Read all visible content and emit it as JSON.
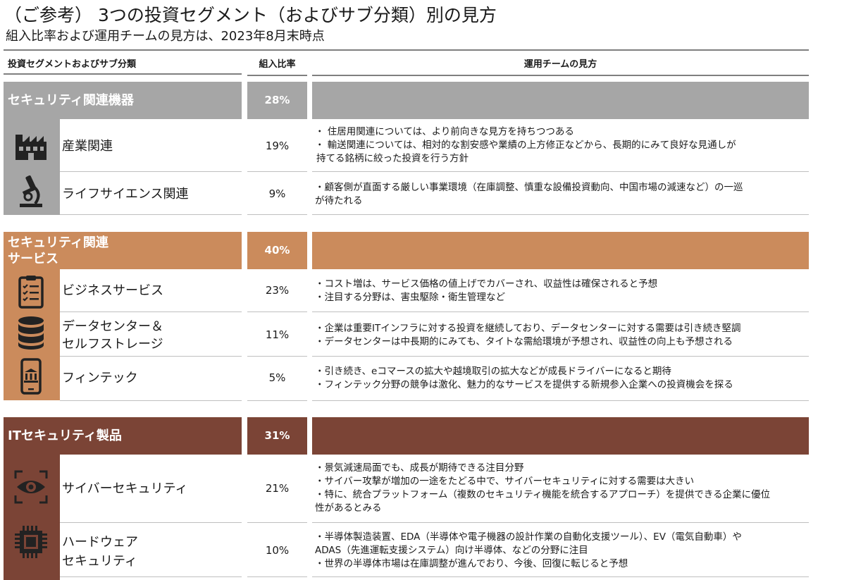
{
  "header": {
    "title": "（ご参考） 3つの投資セグメント（およびサブ分類）別の見方",
    "subtitle": "組入比率および運用チームの見方は、2023年8月末時点"
  },
  "columns": {
    "segment": "投資セグメントおよびサブ分類",
    "ratio": "組入比率",
    "outlook": "運用チームの見方"
  },
  "colors": {
    "segment1": "#a6a6a6",
    "segment2": "#cb8b5c",
    "segment3": "#7b4436",
    "separator": "#bfbfbf"
  },
  "segments": [
    {
      "name": "セキュリティ関連機器",
      "ratio": "28%",
      "rows": [
        {
          "icon": "factory-icon",
          "name": "産業関連",
          "ratio": "19%",
          "comments": [
            "・ 住居用関連については、より前向きな見方を持ちつつある",
            "・ 輸送関連については、相対的な割安感や業績の上方修正などから、長期的にみて良好な見通しが",
            "持てる銘柄に絞った投資を行う方針"
          ]
        },
        {
          "icon": "microscope-icon",
          "name": "ライフサイエンス関連",
          "ratio": "9%",
          "comments": [
            "・顧客側が直面する厳しい事業環境（在庫調整、慎重な設備投資動向、中国市場の減速など）の一巡",
            "が待たれる"
          ]
        }
      ]
    },
    {
      "name_lines": [
        "セキュリティ関連",
        "サービス"
      ],
      "ratio": "40%",
      "rows": [
        {
          "icon": "clipboard-checklist-icon",
          "name": "ビジネスサービス",
          "ratio": "23%",
          "comments": [
            "・コスト増は、サービス価格の値上げでカバーされ、収益性は確保されると予想",
            "・注目する分野は、害虫駆除・衛生管理など"
          ]
        },
        {
          "icon": "database-icon",
          "name_lines": [
            "データセンター＆",
            "セルフストレージ"
          ],
          "ratio": "11%",
          "comments": [
            "・企業は重要ITインフラに対する投資を継続しており、データセンターに対する需要は引き続き堅調",
            "・データセンターは中長期的にみても、タイトな需給環境が予想され、収益性の向上も予想される"
          ]
        },
        {
          "icon": "smartphone-bank-icon",
          "name": "フィンテック",
          "ratio": "5%",
          "comments": [
            "・引き続き、eコマースの拡大や越境取引の拡大などが成長ドライバーになると期待",
            "・フィンテック分野の競争は激化、魅力的なサービスを提供する新規参入企業への投資機会を探る"
          ]
        }
      ]
    },
    {
      "name": "ITセキュリティ製品",
      "ratio": "31%",
      "rows": [
        {
          "icon": "eye-scan-icon",
          "name": "サイバーセキュリティ",
          "ratio": "21%",
          "comments": [
            "・景気減速局面でも、成長が期待できる注目分野",
            "・サイバー攻撃が増加の一途をたどる中で、サイバーセキュリティに対する需要は大きい",
            "・特に、統合プラットフォーム（複数のセキュリティ機能を統合するアプローチ）を提供できる企業に優位",
            "性があるとみる"
          ]
        },
        {
          "icon": "chip-icon",
          "name_lines": [
            "ハードウェア",
            "セキュリティ"
          ],
          "ratio": "10%",
          "comments": [
            "・半導体製造装置、EDA（半導体や電子機器の設計作業の自動化支援ツール）、EV（電気自動車）や",
            "ADAS（先進運転支援システム）向け半導体、などの分野に注目",
            "・世界の半導体市場は在庫調整が進んでおり、今後、回復に転じると予想"
          ]
        }
      ]
    }
  ]
}
